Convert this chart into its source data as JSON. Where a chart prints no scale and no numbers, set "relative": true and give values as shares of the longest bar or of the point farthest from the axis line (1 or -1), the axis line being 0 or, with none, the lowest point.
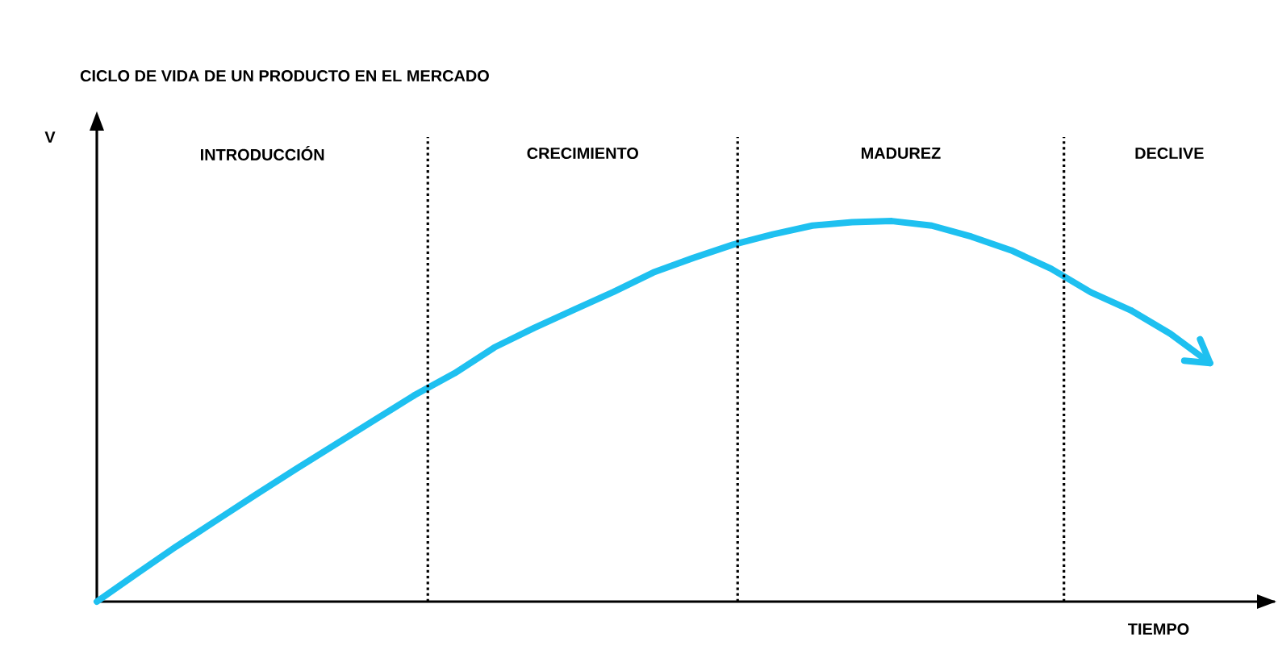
{
  "chart_data": {
    "type": "line",
    "relative": true,
    "title": "CICLO DE VIDA DE UN PRODUCTO EN EL MERCADO",
    "xlabel": "TIEMPO",
    "categories": [
      null,
      null,
      null,
      null,
      null,
      null,
      null,
      null,
      null,
      null,
      null,
      null,
      null,
      null,
      null,
      null,
      null,
      null,
      null,
      null,
      null,
      null,
      null,
      null,
      null,
      null,
      null,
      null,
      null
    ],
    "series": [
      {
        "color": "#1ec0f0",
        "values": [
          0,
          0.073,
          0.145,
          0.213,
          0.281,
          0.348,
          0.413,
          0.478,
          0.543,
          0.6,
          0.668,
          0.719,
          0.767,
          0.814,
          0.865,
          0.903,
          0.938,
          0.965,
          0.988,
          0.997,
          1,
          0.988,
          0.959,
          0.923,
          0.875,
          0.813,
          0.766,
          0.704,
          0.627
        ]
      }
    ],
    "annotations": [
      "V",
      "INTRODUCCIÓN",
      "CRECIMIENTO",
      "MADUREZ",
      "DECLIVE"
    ]
  }
}
